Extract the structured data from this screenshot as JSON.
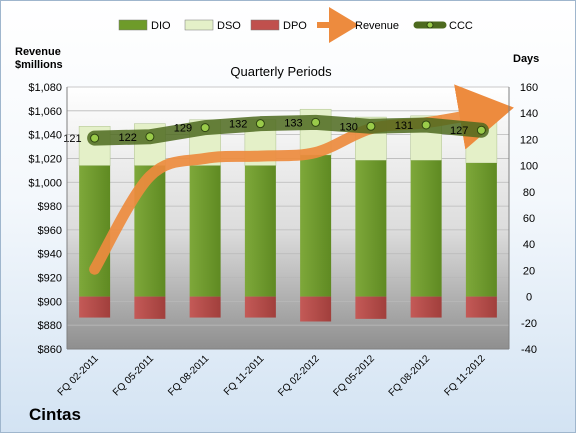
{
  "chart_data": {
    "type": "bar",
    "title": "Quarterly Periods",
    "company": "Cintas",
    "y_left_label": "Revenue\n$millions",
    "y_right_label": "Days",
    "categories": [
      "FQ 02-2011",
      "FQ 05-2011",
      "FQ 08-2011",
      "FQ 11-2011",
      "FQ 02-2012",
      "FQ 05-2012",
      "FQ 08-2012",
      "FQ 11-2012"
    ],
    "y_left_lim": [
      860,
      1080
    ],
    "y_left_ticks": [
      "$860",
      "$880",
      "$900",
      "$920",
      "$940",
      "$960",
      "$980",
      "$1,000",
      "$1,020",
      "$1,040",
      "$1,060",
      "$1,080"
    ],
    "y_right_lim": [
      -40,
      160
    ],
    "y_right_ticks": [
      "-40",
      "-20",
      "0",
      "20",
      "40",
      "60",
      "80",
      "100",
      "120",
      "140",
      "160"
    ],
    "series": [
      {
        "name": "DIO",
        "axis": "right",
        "kind": "stacked-bar",
        "color": "#6e9b2a",
        "values": [
          100,
          100,
          100,
          100,
          108,
          104,
          104,
          102
        ]
      },
      {
        "name": "DSO",
        "axis": "right",
        "kind": "stacked-bar",
        "color": "#e4f0c8",
        "values": [
          30,
          32,
          35,
          35,
          35,
          33,
          34,
          32
        ]
      },
      {
        "name": "DPO",
        "axis": "right",
        "kind": "negative-bar",
        "color": "#c0504d",
        "values": [
          -16,
          -17,
          -16,
          -16,
          -19,
          -17,
          -16,
          -16
        ]
      },
      {
        "name": "Revenue",
        "axis": "left",
        "kind": "line",
        "color": "#ed8b3e",
        "values": [
          927,
          1005,
          1020,
          1022,
          1025,
          1045,
          1050,
          1058
        ]
      },
      {
        "name": "CCC",
        "axis": "right",
        "kind": "line",
        "color": "#4d6a1e",
        "values": [
          121,
          122,
          129,
          132,
          133,
          130,
          131,
          127
        ],
        "labels": [
          "121",
          "122",
          "129",
          "132",
          "133",
          "130",
          "131",
          "127"
        ]
      }
    ],
    "legend": [
      "DIO",
      "DSO",
      "DPO",
      "Revenue",
      "CCC"
    ],
    "legend_position": "top",
    "grid": true
  }
}
